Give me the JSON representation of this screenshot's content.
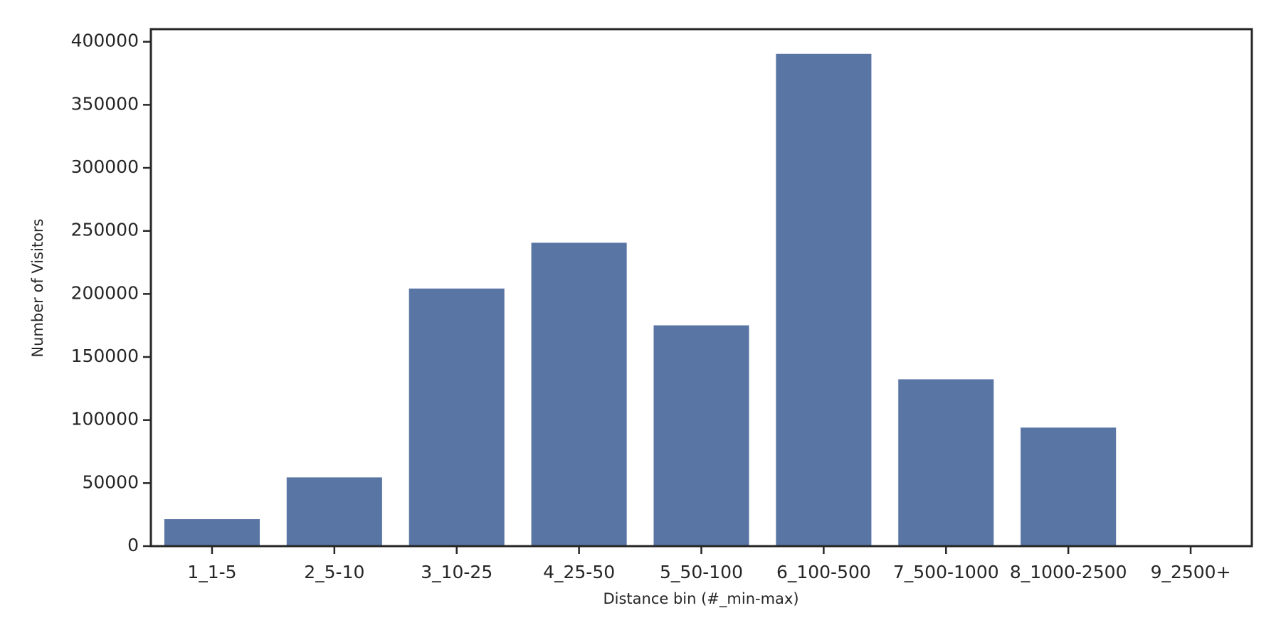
{
  "chart_data": {
    "type": "bar",
    "x_label": "Distance bin (#_min-max)",
    "y_label": "Number of Visitors",
    "categories": [
      "1_1-5",
      "2_5-10",
      "3_10-25",
      "4_25-50",
      "5_50-100",
      "6_100-500",
      "7_500-1000",
      "8_1000-2500",
      "9_2500+"
    ],
    "values": [
      21400,
      54500,
      204300,
      240600,
      175100,
      390400,
      132300,
      94000,
      0
    ],
    "color": "#5975a4",
    "ylim": [
      0,
      410000
    ],
    "yticks": [
      0,
      50000,
      100000,
      150000,
      200000,
      250000,
      300000,
      350000,
      400000
    ],
    "grid": false
  }
}
